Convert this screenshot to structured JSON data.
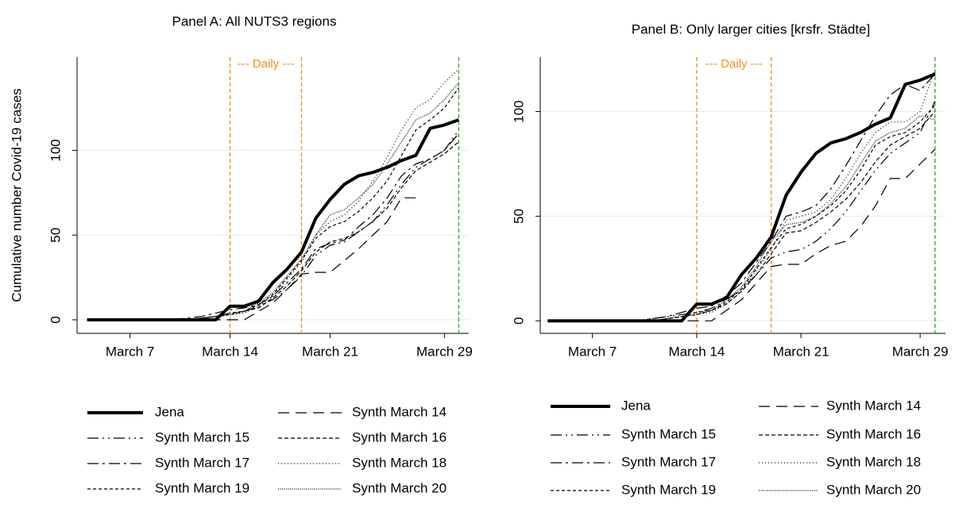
{
  "chart_data": [
    {
      "type": "line",
      "title": "Panel A: All NUTS3 regions",
      "y_label": "Cumulative number Covid-19 cases",
      "x": [
        4,
        5,
        6,
        7,
        8,
        9,
        10,
        11,
        12,
        13,
        14,
        15,
        16,
        17,
        18,
        19,
        20,
        21,
        22,
        23,
        24,
        25,
        26,
        27,
        28,
        29,
        30
      ],
      "xlim": [
        3.3,
        30.7
      ],
      "ylim": [
        -8,
        155
      ],
      "xticks": [
        {
          "value": 7,
          "label": "March 7"
        },
        {
          "value": 14,
          "label": "March 14"
        },
        {
          "value": 21,
          "label": "March 21"
        },
        {
          "value": 29,
          "label": "March 29"
        }
      ],
      "yticks": [
        0,
        50,
        100
      ],
      "grid": true,
      "annotation": "--- Daily ---",
      "vlines": [
        {
          "x": 14,
          "color": "#f28e1c"
        },
        {
          "x": 19,
          "color": "#f28e1c"
        },
        {
          "x": 30,
          "color": "#2ca02c"
        }
      ],
      "series": [
        {
          "name": "Jena",
          "color": "#000000",
          "width": 4,
          "dash": "none",
          "values": [
            0,
            0,
            0,
            0,
            0,
            0,
            0,
            0,
            0,
            0,
            8,
            8,
            11,
            22,
            30,
            40,
            60,
            71,
            80,
            85,
            87,
            90,
            94,
            97,
            113,
            115,
            118
          ]
        },
        {
          "name": "Synth March 14",
          "color": "#000000",
          "width": 1.2,
          "dash": "14,8",
          "values": [
            0,
            0,
            0,
            0,
            0,
            0,
            0,
            0,
            0,
            0,
            0,
            0,
            5,
            10,
            18,
            27,
            28,
            28,
            35,
            42,
            50,
            58,
            72,
            72,
            null,
            null,
            null
          ]
        },
        {
          "name": "Synth March 15",
          "color": "#000000",
          "width": 1.2,
          "dash": "14,5,2,5,2,5",
          "values": [
            0,
            0,
            0,
            0,
            0,
            0,
            0,
            0,
            1,
            2,
            4,
            5,
            8,
            12,
            18,
            26,
            38,
            44,
            46,
            52,
            58,
            68,
            80,
            90,
            95,
            100,
            112
          ]
        },
        {
          "name": "Synth March 16",
          "color": "#000000",
          "width": 1.2,
          "dash": "5,3",
          "values": [
            0,
            0,
            0,
            0,
            0,
            0,
            0,
            0,
            1,
            2,
            4,
            5,
            7,
            13,
            20,
            29,
            40,
            46,
            48,
            52,
            58,
            66,
            78,
            88,
            93,
            98,
            105
          ]
        },
        {
          "name": "Synth March 17",
          "color": "#000000",
          "width": 1.2,
          "dash": "14,5,3,5",
          "values": [
            0,
            0,
            0,
            0,
            0,
            0,
            0,
            1,
            2,
            4,
            6,
            7,
            9,
            14,
            22,
            30,
            42,
            45,
            47,
            55,
            62,
            72,
            85,
            92,
            95,
            100,
            110
          ]
        },
        {
          "name": "Synth March 18",
          "color": "#000000",
          "width": 1.2,
          "dash": "1,3",
          "values": [
            0,
            0,
            0,
            0,
            0,
            0,
            0,
            0,
            1,
            2,
            3,
            4,
            8,
            14,
            24,
            34,
            50,
            58,
            62,
            70,
            82,
            96,
            112,
            125,
            130,
            140,
            148
          ]
        },
        {
          "name": "Synth March 19",
          "color": "#000000",
          "width": 1.2,
          "dash": "4,3",
          "values": [
            0,
            0,
            0,
            0,
            0,
            0,
            0,
            0,
            1,
            2,
            3,
            5,
            9,
            15,
            25,
            35,
            48,
            55,
            58,
            64,
            72,
            82,
            97,
            112,
            118,
            125,
            137
          ]
        },
        {
          "name": "Synth March 20",
          "color": "#000000",
          "width": 1.2,
          "dash": "1,1.5",
          "values": [
            0,
            0,
            0,
            0,
            0,
            0,
            0,
            0,
            1,
            2,
            3,
            5,
            10,
            16,
            26,
            36,
            50,
            62,
            65,
            72,
            80,
            92,
            105,
            118,
            122,
            130,
            140
          ]
        }
      ]
    },
    {
      "type": "line",
      "title": "Panel B: Only larger cities [krsfr. Städte]",
      "x": [
        4,
        5,
        6,
        7,
        8,
        9,
        10,
        11,
        12,
        13,
        14,
        15,
        16,
        17,
        18,
        19,
        20,
        21,
        22,
        23,
        24,
        25,
        26,
        27,
        28,
        29,
        30
      ],
      "xlim": [
        3.5,
        30.7
      ],
      "ylim": [
        -6,
        126
      ],
      "xticks": [
        {
          "value": 7,
          "label": "March 7"
        },
        {
          "value": 14,
          "label": "March 14"
        },
        {
          "value": 21,
          "label": "March 21"
        },
        {
          "value": 29,
          "label": "March 29"
        }
      ],
      "yticks": [
        0,
        50,
        100
      ],
      "grid": true,
      "annotation": "--- Daily ---",
      "vlines": [
        {
          "x": 14,
          "color": "#f28e1c"
        },
        {
          "x": 19,
          "color": "#f28e1c"
        },
        {
          "x": 30,
          "color": "#2ca02c"
        }
      ],
      "series": [
        {
          "name": "Jena",
          "color": "#000000",
          "width": 4,
          "dash": "none",
          "values": [
            0,
            0,
            0,
            0,
            0,
            0,
            0,
            0,
            0,
            0,
            8,
            8,
            11,
            22,
            30,
            40,
            60,
            71,
            80,
            85,
            87,
            90,
            94,
            97,
            113,
            115,
            118
          ]
        },
        {
          "name": "Synth March 14",
          "color": "#000000",
          "width": 1.2,
          "dash": "14,8",
          "values": [
            0,
            0,
            0,
            0,
            0,
            0,
            0,
            0,
            0,
            0,
            0,
            0,
            5,
            10,
            18,
            26,
            27,
            27,
            32,
            36,
            38,
            45,
            55,
            68,
            68,
            75,
            82
          ]
        },
        {
          "name": "Synth March 15",
          "color": "#000000",
          "width": 1.2,
          "dash": "14,5,2,5,2,5",
          "values": [
            0,
            0,
            0,
            0,
            0,
            0,
            0,
            1,
            2,
            3,
            4,
            6,
            10,
            15,
            22,
            30,
            33,
            34,
            38,
            44,
            52,
            62,
            72,
            80,
            85,
            90,
            105
          ]
        },
        {
          "name": "Synth March 16",
          "color": "#000000",
          "width": 1.2,
          "dash": "5,3",
          "values": [
            0,
            0,
            0,
            0,
            0,
            0,
            0,
            0,
            1,
            2,
            4,
            5,
            8,
            14,
            22,
            32,
            42,
            43,
            47,
            52,
            58,
            66,
            76,
            84,
            88,
            92,
            100
          ]
        },
        {
          "name": "Synth March 17",
          "color": "#000000",
          "width": 1.2,
          "dash": "14,5,3,5",
          "values": [
            0,
            0,
            0,
            0,
            0,
            0,
            0,
            1,
            2,
            4,
            6,
            7,
            12,
            18,
            28,
            38,
            50,
            52,
            55,
            63,
            74,
            86,
            98,
            108,
            113,
            110,
            118
          ]
        },
        {
          "name": "Synth March 18",
          "color": "#000000",
          "width": 1.2,
          "dash": "1,3",
          "values": [
            0,
            0,
            0,
            0,
            0,
            0,
            0,
            0,
            1,
            2,
            3,
            4,
            8,
            14,
            24,
            34,
            48,
            50,
            52,
            58,
            68,
            80,
            90,
            95,
            95,
            100,
            120
          ]
        },
        {
          "name": "Synth March 19",
          "color": "#000000",
          "width": 1.2,
          "dash": "4,3",
          "values": [
            0,
            0,
            0,
            0,
            0,
            0,
            0,
            0,
            1,
            2,
            3,
            5,
            9,
            15,
            25,
            35,
            44,
            46,
            50,
            55,
            62,
            72,
            84,
            88,
            90,
            95,
            103
          ]
        },
        {
          "name": "Synth March 20",
          "color": "#000000",
          "width": 1.2,
          "dash": "1,1.5",
          "values": [
            0,
            0,
            0,
            0,
            0,
            0,
            0,
            0,
            1,
            2,
            3,
            5,
            10,
            16,
            26,
            38,
            46,
            47,
            50,
            56,
            64,
            75,
            86,
            90,
            92,
            98,
            96
          ]
        }
      ]
    }
  ]
}
